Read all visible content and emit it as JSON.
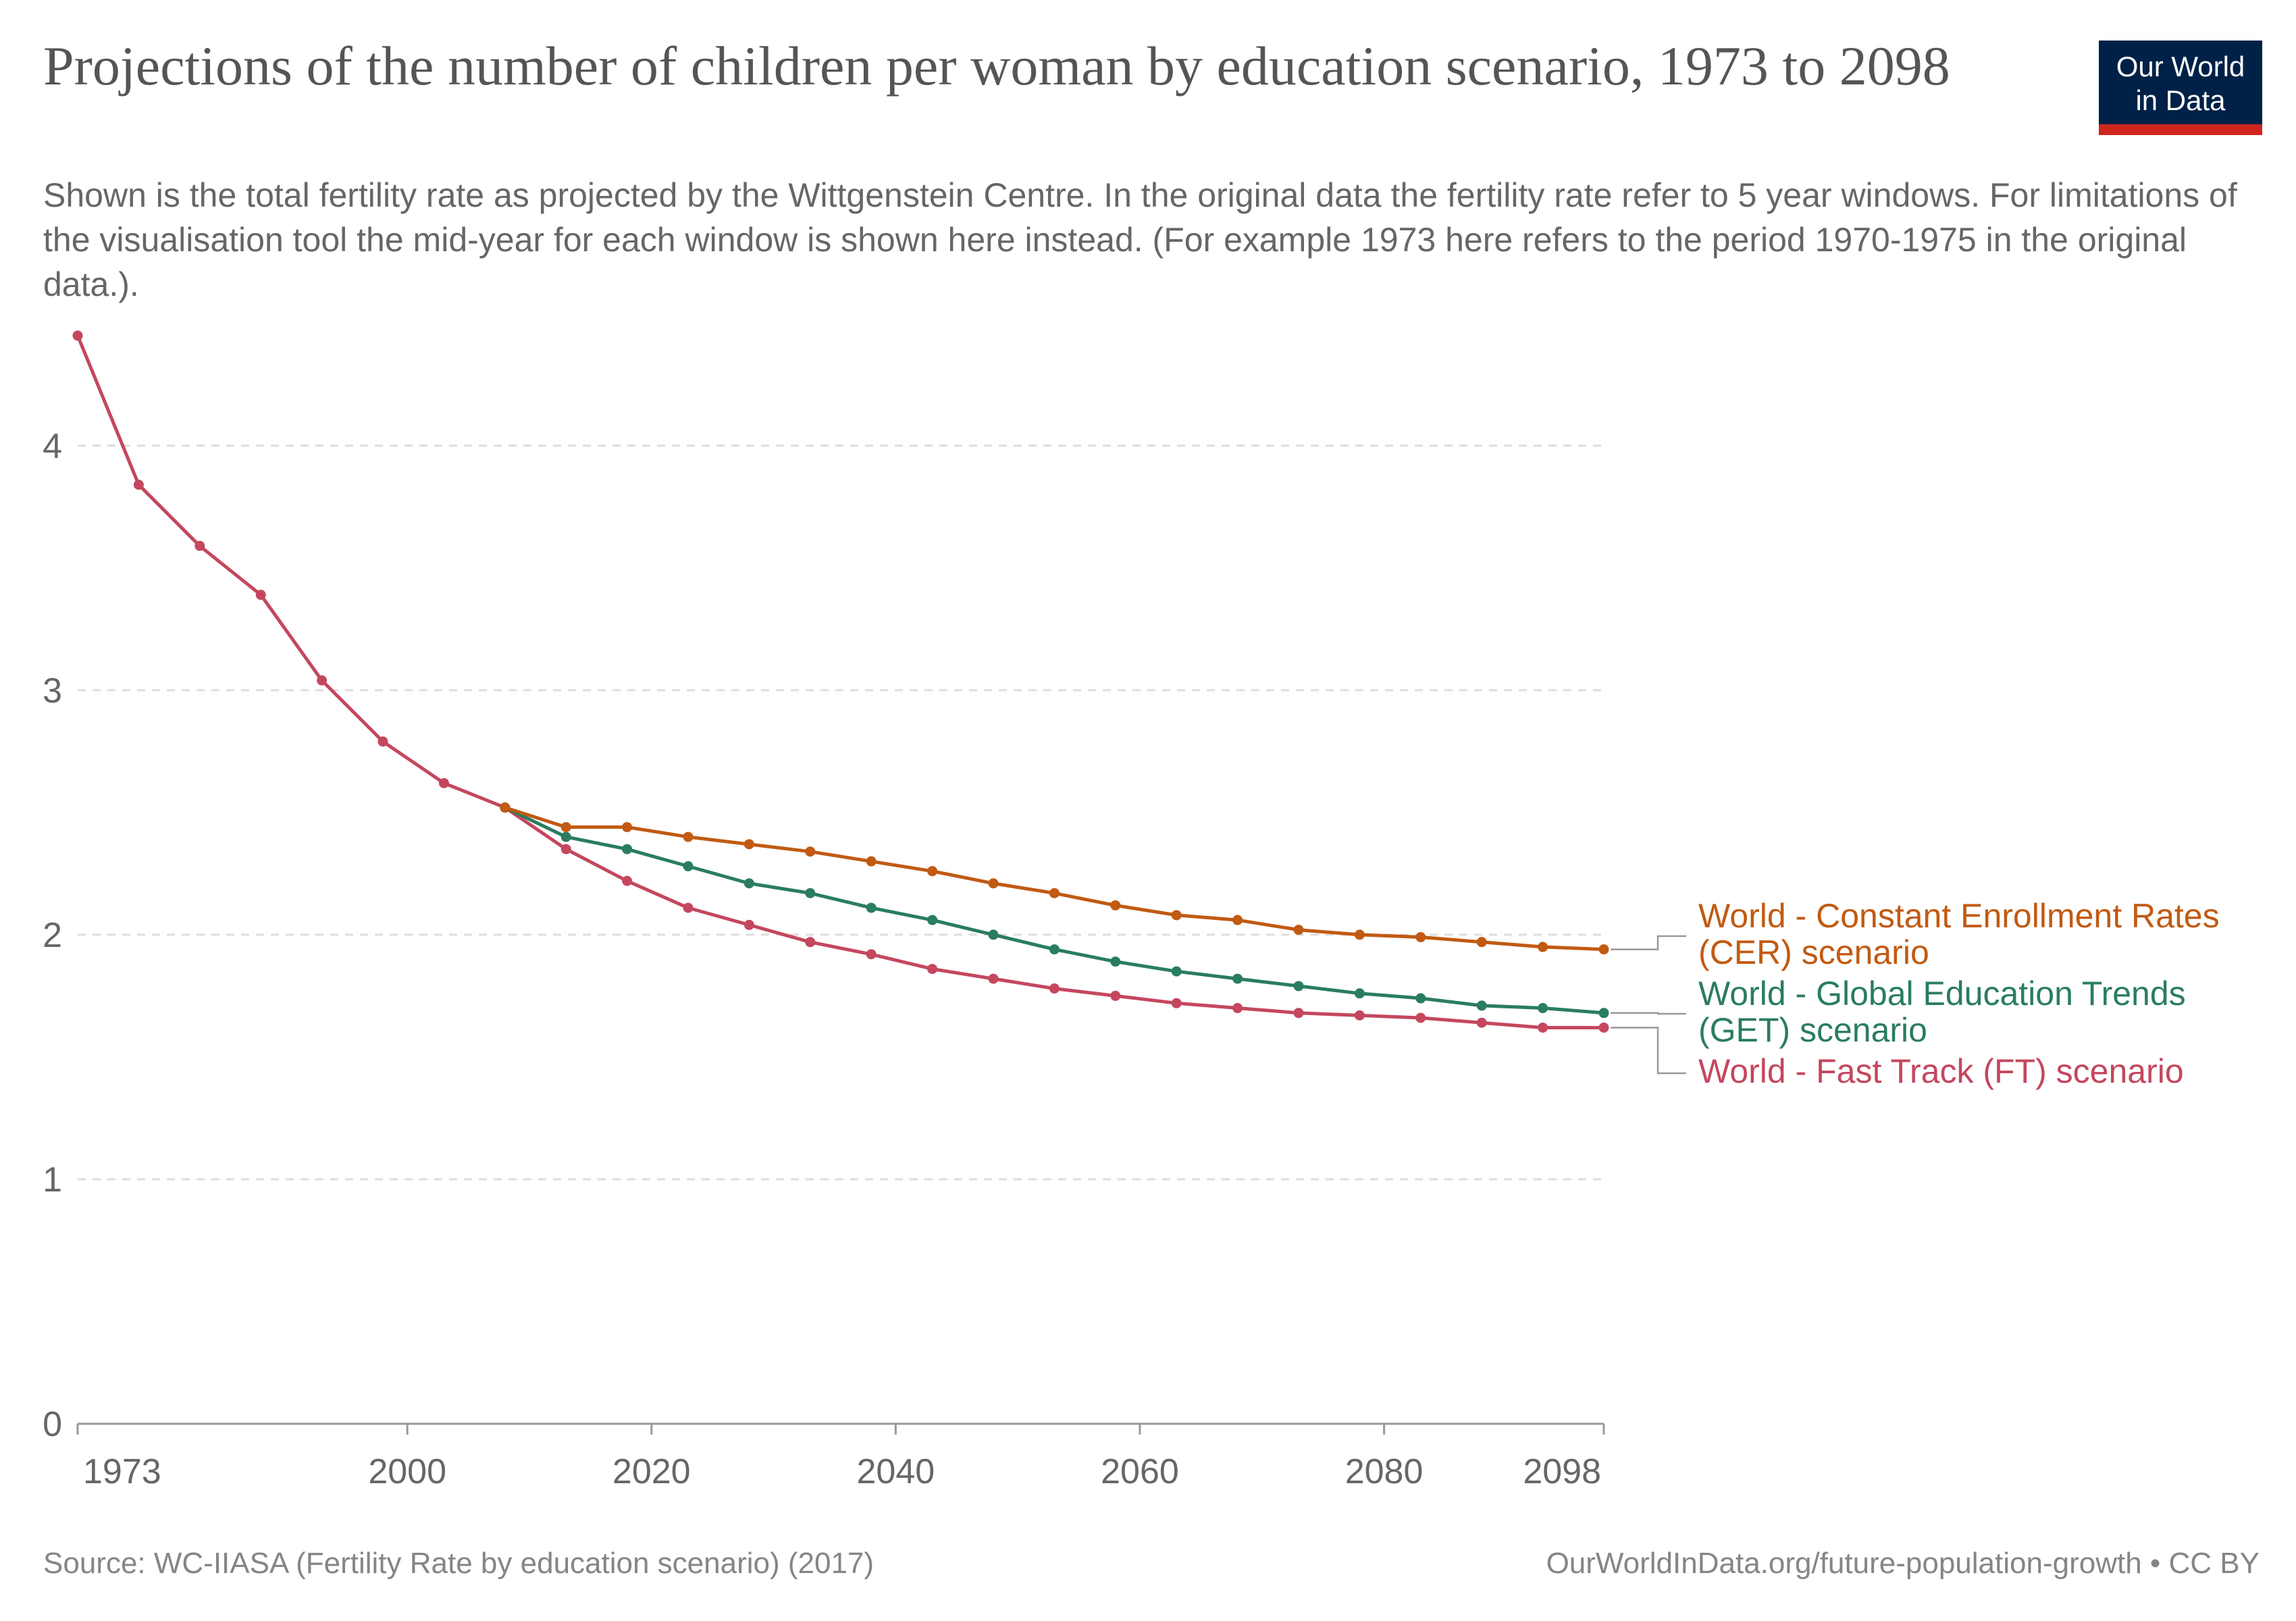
{
  "header": {
    "title": "Projections of the number of children per woman by education scenario, 1973 to 2098",
    "subtitle": "Shown is the total fertility rate as projected by the Wittgenstein Centre. In the original data the fertility rate refer to 5 year windows. For limitations of the visualisation tool the mid-year for each window is shown here instead. (For example 1973 here refers to the period 1970-1975 in the original data.).",
    "logo_line1": "Our World",
    "logo_line2": "in Data"
  },
  "footer": {
    "source": "Source: WC-IIASA (Fertility Rate by education scenario) (2017)",
    "url": "OurWorldInData.org/future-population-growth • CC BY"
  },
  "chart_data": {
    "type": "line",
    "title": "Projections of the number of children per woman by education scenario, 1973 to 2098",
    "xlabel": "",
    "ylabel": "",
    "xlim": [
      1973,
      2098
    ],
    "ylim": [
      0,
      4.4
    ],
    "grid": true,
    "legend": "line-end labels on the right",
    "x_ticks": [
      1973,
      2000,
      2020,
      2040,
      2060,
      2080,
      2098
    ],
    "y_ticks": [
      0,
      1,
      2,
      3,
      4
    ],
    "series": [
      {
        "name": "World - Constant Enrollment Rates (CER) scenario",
        "color": "#c15a12",
        "x": [
          2008,
          2013,
          2018,
          2023,
          2028,
          2033,
          2038,
          2043,
          2048,
          2053,
          2058,
          2063,
          2068,
          2073,
          2078,
          2083,
          2088,
          2093,
          2098
        ],
        "values": [
          2.52,
          2.44,
          2.44,
          2.4,
          2.37,
          2.34,
          2.3,
          2.26,
          2.21,
          2.17,
          2.12,
          2.08,
          2.06,
          2.02,
          2.0,
          1.99,
          1.97,
          1.95,
          1.94
        ]
      },
      {
        "name": "World - Global Education Trends (GET) scenario",
        "color": "#2a7d5f",
        "x": [
          2008,
          2013,
          2018,
          2023,
          2028,
          2033,
          2038,
          2043,
          2048,
          2053,
          2058,
          2063,
          2068,
          2073,
          2078,
          2083,
          2088,
          2093,
          2098
        ],
        "values": [
          2.52,
          2.4,
          2.35,
          2.28,
          2.21,
          2.17,
          2.11,
          2.06,
          2.0,
          1.94,
          1.89,
          1.85,
          1.82,
          1.79,
          1.76,
          1.74,
          1.71,
          1.7,
          1.68
        ]
      },
      {
        "name": "World - Fast Track (FT) scenario",
        "color": "#c4475e",
        "x": [
          1973,
          1978,
          1983,
          1988,
          1993,
          1998,
          2003,
          2008,
          2013,
          2018,
          2023,
          2028,
          2033,
          2038,
          2043,
          2048,
          2053,
          2058,
          2063,
          2068,
          2073,
          2078,
          2083,
          2088,
          2093,
          2098
        ],
        "values": [
          4.45,
          3.84,
          3.59,
          3.39,
          3.04,
          2.79,
          2.62,
          2.52,
          2.35,
          2.22,
          2.11,
          2.04,
          1.97,
          1.92,
          1.86,
          1.82,
          1.78,
          1.75,
          1.72,
          1.7,
          1.68,
          1.67,
          1.66,
          1.64,
          1.62,
          1.62
        ]
      }
    ],
    "legend_labels": [
      {
        "line1": "World - Constant Enrollment Rates",
        "line2": "(CER) scenario",
        "color": "#c15a12"
      },
      {
        "line1": "World - Global Education Trends",
        "line2": "(GET) scenario",
        "color": "#2a7d5f"
      },
      {
        "line1": "World - Fast Track (FT) scenario",
        "line2": "",
        "color": "#c4475e"
      }
    ]
  }
}
